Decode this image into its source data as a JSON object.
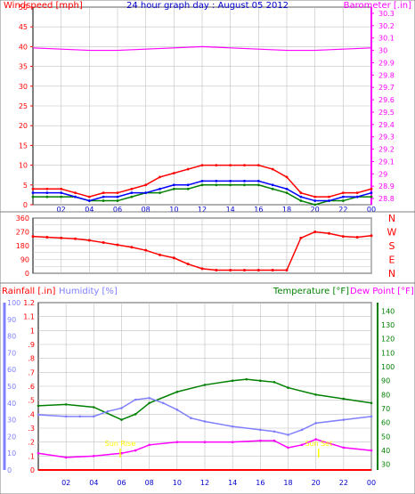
{
  "chart_data": [
    {
      "type": "line",
      "title": "24 hour graph day : August 05 2012",
      "ylabel": "Windspeed [mph]",
      "y2label": "Barometer [.in]",
      "x_ticks": [
        "02",
        "04",
        "06",
        "08",
        "10",
        "12",
        "14",
        "16",
        "18",
        "20",
        "22",
        "00"
      ],
      "ylim": [
        0,
        50
      ],
      "y_ticks": [
        0,
        5,
        10,
        15,
        20,
        25,
        30,
        35,
        40,
        45,
        50
      ],
      "y2lim": [
        28.75,
        30.35
      ],
      "y2_ticks": [
        28.8,
        28.9,
        29,
        29.1,
        29.2,
        29.3,
        29.4,
        29.5,
        29.6,
        29.7,
        29.8,
        29.9,
        30,
        30.1,
        30.2,
        30.3
      ],
      "grid": true,
      "colors": {
        "gust": "#ff0000",
        "speed": "#008000",
        "avg": "#0000ff",
        "barometer": "#ff00ff",
        "label_blue": "#0000cc"
      },
      "series": [
        {
          "name": "gust",
          "x": [
            0,
            1,
            2,
            3,
            4,
            5,
            6,
            7,
            8,
            9,
            10,
            11,
            12,
            13,
            14,
            15,
            16,
            17,
            18,
            19,
            20,
            21,
            22,
            23,
            24
          ],
          "values": [
            4,
            4,
            4,
            3,
            2,
            3,
            3,
            4,
            5,
            7,
            8,
            9,
            10,
            10,
            10,
            10,
            10,
            9,
            7,
            3,
            2,
            2,
            3,
            3,
            4
          ]
        },
        {
          "name": "speed",
          "x": [
            0,
            1,
            2,
            3,
            4,
            5,
            6,
            7,
            8,
            9,
            10,
            11,
            12,
            13,
            14,
            15,
            16,
            17,
            18,
            19,
            20,
            21,
            22,
            23,
            24
          ],
          "values": [
            2,
            2,
            2,
            2,
            1,
            1,
            1,
            2,
            3,
            3,
            4,
            4,
            5,
            5,
            5,
            5,
            5,
            4,
            3,
            1,
            0,
            1,
            1,
            2,
            2
          ]
        },
        {
          "name": "average",
          "x": [
            0,
            1,
            2,
            3,
            4,
            5,
            6,
            7,
            8,
            9,
            10,
            11,
            12,
            13,
            14,
            15,
            16,
            17,
            18,
            19,
            20,
            21,
            22,
            23,
            24
          ],
          "values": [
            3,
            3,
            3,
            2,
            1,
            2,
            2,
            3,
            3,
            4,
            5,
            5,
            6,
            6,
            6,
            6,
            6,
            5,
            4,
            2,
            1,
            1,
            2,
            2,
            3
          ]
        },
        {
          "name": "barometer",
          "x": [
            0,
            2,
            4,
            6,
            8,
            10,
            12,
            14,
            16,
            18,
            20,
            22,
            24
          ],
          "values": [
            30.02,
            30.01,
            30.0,
            30.0,
            30.01,
            30.02,
            30.03,
            30.02,
            30.01,
            30.0,
            30.0,
            30.01,
            30.02
          ]
        }
      ]
    },
    {
      "type": "scatter",
      "ylabel": "Wind Direction",
      "x_ticks": [
        "02",
        "04",
        "06",
        "08",
        "10",
        "12",
        "14",
        "16",
        "18",
        "20",
        "22",
        "00"
      ],
      "ylim": [
        0,
        360
      ],
      "y_ticks": [
        0,
        45,
        90,
        135,
        180,
        225,
        270,
        315,
        360
      ],
      "direction_labels": [
        "N",
        "W",
        "S",
        "E",
        "N"
      ],
      "colors": {
        "direction": "#ff0000"
      },
      "series": [
        {
          "name": "direction",
          "x": [
            0,
            1,
            2,
            3,
            4,
            5,
            6,
            7,
            8,
            9,
            10,
            11,
            12,
            13,
            14,
            15,
            16,
            17,
            18,
            19,
            20,
            21,
            22,
            23,
            24
          ],
          "values": [
            240,
            235,
            230,
            225,
            215,
            200,
            185,
            170,
            150,
            120,
            100,
            60,
            30,
            20,
            20,
            20,
            20,
            20,
            20,
            230,
            270,
            260,
            240,
            235,
            245
          ]
        }
      ]
    },
    {
      "type": "line",
      "ylabel_left": "Rainfall [.in]",
      "ylabel_left2": "Humidity [%]",
      "ylabel_right": "Temperature [°F]",
      "ylabel_right2": "Dew Point [°F]",
      "x_ticks": [
        "02",
        "04",
        "06",
        "08",
        "10",
        "12",
        "14",
        "16",
        "18",
        "20",
        "22",
        "00"
      ],
      "rain_ylim": [
        0,
        1.2
      ],
      "rain_ticks": [
        0,
        0.1,
        0.2,
        0.3,
        0.4,
        0.5,
        0.6,
        0.7,
        0.8,
        0.9,
        1,
        1.1,
        1.2
      ],
      "humidity_ylim": [
        0,
        100
      ],
      "humidity_ticks": [
        0,
        10,
        20,
        30,
        40,
        50,
        60,
        70,
        80,
        90,
        100
      ],
      "temp_ylim": [
        26,
        146
      ],
      "temp_ticks": [
        30,
        40,
        50,
        60,
        70,
        80,
        90,
        100,
        110,
        120,
        130,
        140
      ],
      "annotations": [
        {
          "text": "Sun Rise",
          "x": 5.9
        },
        {
          "text": "Sun Set",
          "x": 20.2
        }
      ],
      "colors": {
        "rain": "#ff0000",
        "humidity": "#8080ff",
        "temperature": "#008000",
        "dewpoint": "#ff00ff",
        "sun": "#ffff00"
      },
      "series": [
        {
          "name": "temperature",
          "x": [
            0,
            2,
            4,
            6,
            7,
            8,
            10,
            12,
            14,
            15,
            16,
            17,
            18,
            20,
            22,
            24
          ],
          "values": [
            72,
            73,
            71,
            62,
            66,
            74,
            82,
            87,
            90,
            91,
            90,
            89,
            85,
            80,
            77,
            74
          ]
        },
        {
          "name": "humidity",
          "x": [
            0,
            2,
            3,
            4,
            5,
            6,
            7,
            8,
            9,
            10,
            11,
            12,
            14,
            16,
            17,
            18,
            19,
            20,
            22,
            24
          ],
          "values": [
            33,
            32,
            32,
            32,
            35,
            37,
            42,
            43,
            40,
            36,
            31,
            29,
            26,
            24,
            23,
            21,
            24,
            28,
            30,
            32
          ]
        },
        {
          "name": "dewpoint",
          "x": [
            0,
            2,
            4,
            6,
            7,
            8,
            10,
            12,
            14,
            16,
            17,
            18,
            19,
            20,
            22,
            24
          ],
          "values": [
            38,
            35,
            36,
            38,
            40,
            44,
            46,
            46,
            46,
            47,
            47,
            42,
            44,
            48,
            42,
            40
          ]
        },
        {
          "name": "rainfall",
          "x": [
            0,
            24
          ],
          "values": [
            0,
            0
          ]
        }
      ]
    }
  ]
}
